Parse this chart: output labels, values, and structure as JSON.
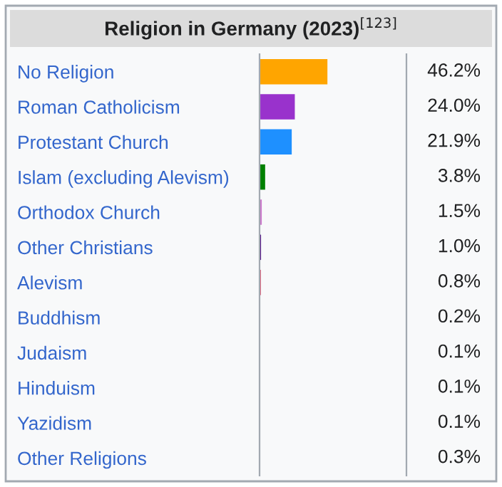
{
  "chart_data": {
    "type": "bar",
    "orientation": "horizontal",
    "title": "Religion in Germany (2023)$^{[123]}$",
    "categories": [
      "No Religion",
      "Roman Catholicism",
      "Protestant Church",
      "Islam (excluding Alevism)",
      "Orthodox Church",
      "Other Christians",
      "Alevism",
      "Buddhism",
      "Judaism",
      "Hinduism",
      "Yazidism",
      "Other Religions"
    ],
    "values": [
      46.2,
      24.0,
      21.9,
      3.8,
      1.5,
      1.0,
      0.8,
      0.2,
      0.1,
      0.1,
      0.1,
      0.3
    ],
    "colors": [
      "#ffa500",
      "#9932cc",
      "#1e90ff",
      "#008000",
      "#cc77cc",
      "#4b0082",
      "#dc143c",
      "#ffd700",
      "#4169e1",
      "#ff4500",
      "#8b4513",
      "#808080"
    ],
    "value_labels": [
      "46.2%",
      "24.0%",
      "21.9%",
      "3.8%",
      "1.5%",
      "1.0%",
      "0.8%",
      "0.2%",
      "0.1%",
      "0.1%",
      "0.1%",
      "0.3%"
    ],
    "xlim": [
      0,
      100
    ],
    "tick_labels": "y",
    "grid": false,
    "legend": false
  }
}
